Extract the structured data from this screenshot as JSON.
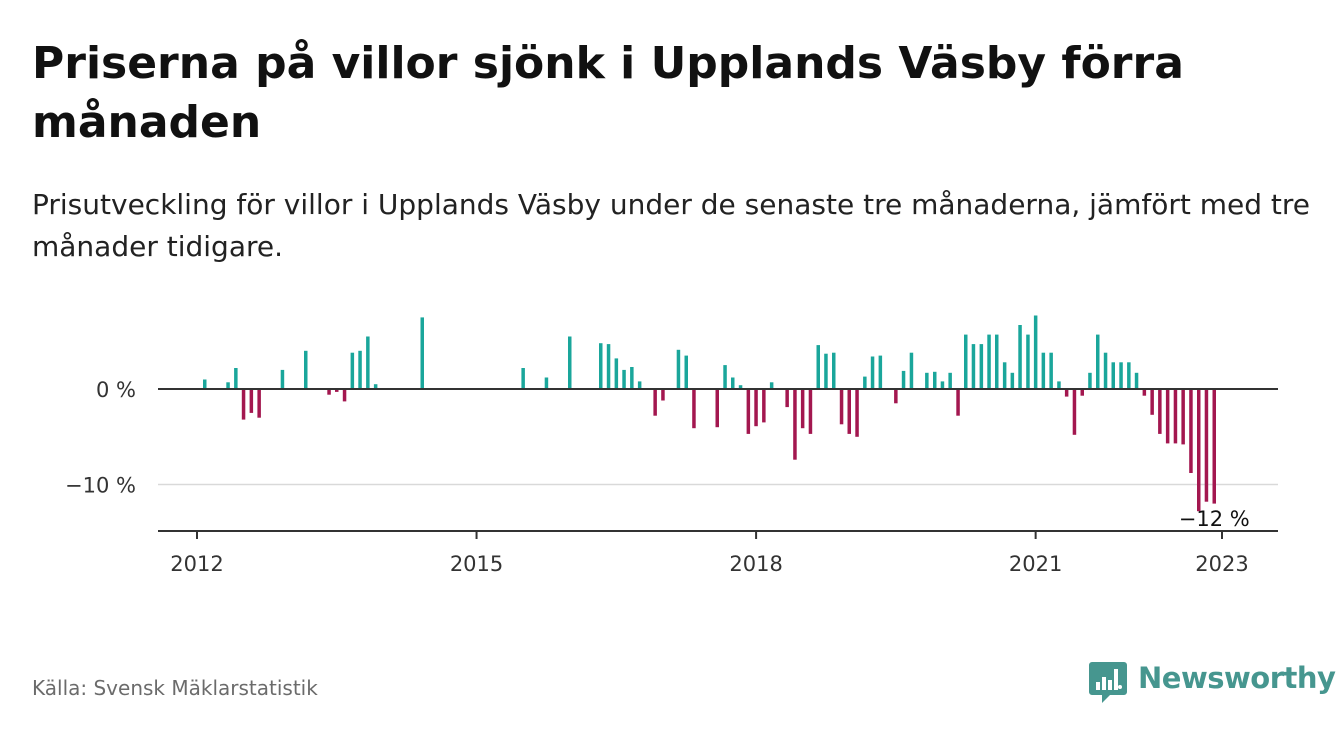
{
  "title": "Priserna på villor sjönk i Upplands Väsby förra månaden",
  "subtitle": "Prisutveckling för villor i Upplands Väsby under de senaste tre månaderna, jämfört med tre månader tidigare.",
  "source": "Källa: Svensk Mäklarstatistik",
  "brand": "Newsworthy",
  "colors": {
    "positive": "#1aa69b",
    "negative": "#a3174f",
    "brand": "#46968f"
  },
  "chart_data": {
    "type": "bar",
    "title": "Priserna på villor sjönk i Upplands Väsby förra månaden",
    "xlabel": "",
    "ylabel": "",
    "ylim": [
      -15,
      8.5
    ],
    "grid": true,
    "y_ticks": [
      {
        "value": 0,
        "label": "0 %"
      },
      {
        "value": -10,
        "label": "−10 %"
      }
    ],
    "x_ticks": [
      {
        "value": 2012.0,
        "label": "2012"
      },
      {
        "value": 2015.0,
        "label": "2015"
      },
      {
        "value": 2018.0,
        "label": "2018"
      },
      {
        "value": 2021.0,
        "label": "2021"
      },
      {
        "value": 2023.0,
        "label": "2023"
      }
    ],
    "annotation": {
      "label": "−12 %",
      "x": 2022.917,
      "y": -12
    },
    "x": [
      2012.083,
      2012.333,
      2012.417,
      2012.5,
      2012.583,
      2012.667,
      2012.917,
      2013.167,
      2013.417,
      2013.5,
      2013.583,
      2013.667,
      2013.75,
      2013.833,
      2013.917,
      2014.417,
      2015.5,
      2015.75,
      2016.0,
      2016.333,
      2016.417,
      2016.5,
      2016.583,
      2016.667,
      2016.75,
      2016.917,
      2017.0,
      2017.167,
      2017.25,
      2017.333,
      2017.583,
      2017.667,
      2017.75,
      2017.833,
      2017.917,
      2018.0,
      2018.083,
      2018.167,
      2018.333,
      2018.417,
      2018.5,
      2018.583,
      2018.667,
      2018.75,
      2018.833,
      2018.917,
      2019.0,
      2019.083,
      2019.167,
      2019.25,
      2019.333,
      2019.5,
      2019.583,
      2019.667,
      2019.833,
      2019.917,
      2020.0,
      2020.083,
      2020.167,
      2020.25,
      2020.333,
      2020.417,
      2020.5,
      2020.583,
      2020.667,
      2020.75,
      2020.833,
      2020.917,
      2021.0,
      2021.083,
      2021.167,
      2021.25,
      2021.333,
      2021.417,
      2021.5,
      2021.583,
      2021.667,
      2021.75,
      2021.833,
      2021.917,
      2022.0,
      2022.083,
      2022.167,
      2022.25,
      2022.333,
      2022.417,
      2022.5,
      2022.583,
      2022.667,
      2022.75,
      2022.833,
      2022.917
    ],
    "values": [
      1,
      0.7,
      2.2,
      -3.2,
      -2.5,
      -3.0,
      2.0,
      4.0,
      -0.6,
      -0.3,
      -1.3,
      3.8,
      4.0,
      5.5,
      0.5,
      7.5,
      2.2,
      1.2,
      5.5,
      4.8,
      4.7,
      3.2,
      2.0,
      2.3,
      0.8,
      -2.8,
      -1.2,
      4.1,
      3.5,
      -4.1,
      -4.0,
      2.5,
      1.2,
      0.4,
      -4.7,
      -3.9,
      -3.5,
      0.7,
      -1.9,
      -7.4,
      -4.1,
      -4.7,
      4.6,
      3.7,
      3.8,
      -3.7,
      -4.7,
      -5.0,
      1.3,
      3.4,
      3.5,
      -1.5,
      1.9,
      3.8,
      1.7,
      1.8,
      0.8,
      1.7,
      -2.8,
      5.7,
      4.7,
      4.7,
      5.7,
      5.7,
      2.8,
      1.7,
      6.7,
      5.7,
      7.7,
      3.8,
      3.8,
      0.8,
      -0.8,
      -4.8,
      -0.7,
      1.7,
      5.7,
      3.8,
      2.8,
      2.8,
      2.8,
      1.7,
      -0.7,
      -2.7,
      -4.7,
      -5.7,
      -5.7,
      -5.8,
      -8.8,
      -12.8,
      -11.8,
      -12
    ]
  }
}
